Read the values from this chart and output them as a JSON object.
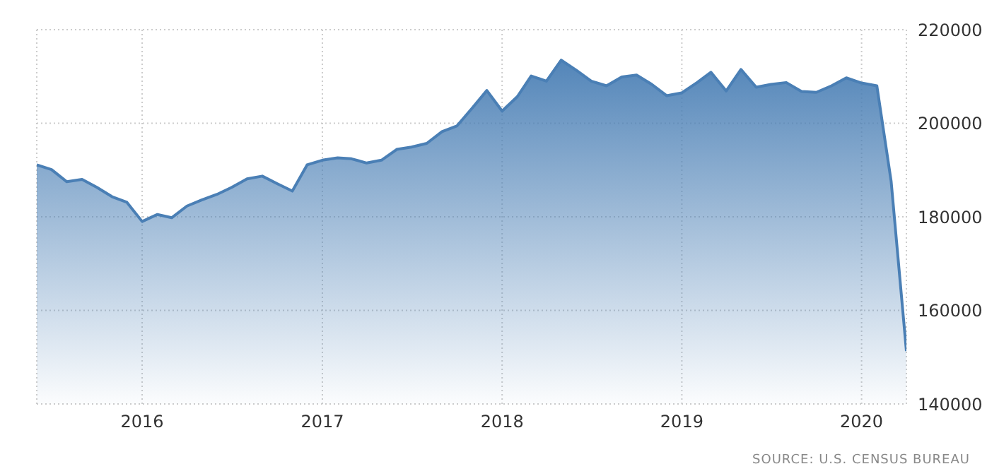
{
  "chart_data": {
    "type": "area",
    "annotations": [
      "SOURCE: U.S. CENSUS BUREAU"
    ],
    "x": [
      "2015-06",
      "2015-07",
      "2015-08",
      "2015-09",
      "2015-10",
      "2015-11",
      "2015-12",
      "2016-01",
      "2016-02",
      "2016-03",
      "2016-04",
      "2016-05",
      "2016-06",
      "2016-07",
      "2016-08",
      "2016-09",
      "2016-10",
      "2016-11",
      "2016-12",
      "2017-01",
      "2017-02",
      "2017-03",
      "2017-04",
      "2017-05",
      "2017-06",
      "2017-07",
      "2017-08",
      "2017-09",
      "2017-10",
      "2017-11",
      "2017-12",
      "2018-01",
      "2018-02",
      "2018-03",
      "2018-04",
      "2018-05",
      "2018-06",
      "2018-07",
      "2018-08",
      "2018-09",
      "2018-10",
      "2018-11",
      "2018-12",
      "2019-01",
      "2019-02",
      "2019-03",
      "2019-04",
      "2019-05",
      "2019-06",
      "2019-07",
      "2019-08",
      "2019-09",
      "2019-10",
      "2019-11",
      "2019-12",
      "2020-01",
      "2020-02",
      "2020-03",
      "2020-04"
    ],
    "series": [
      {
        "color": "#4a7fb5",
        "values": [
          191100,
          190100,
          187500,
          188000,
          186300,
          184300,
          183100,
          179000,
          180500,
          179800,
          182300,
          183600,
          184800,
          186300,
          188100,
          188700,
          187100,
          185500,
          191100,
          192100,
          192600,
          192400,
          191500,
          192100,
          194400,
          194900,
          195700,
          198200,
          199400,
          203200,
          207000,
          202600,
          205700,
          210100,
          209000,
          213500,
          211300,
          209000,
          208000,
          209900,
          210300,
          208300,
          205900,
          206500,
          208700,
          210900,
          206900,
          211500,
          207700,
          208300,
          208700,
          206800,
          206600,
          208000,
          209700,
          208600,
          208000,
          187600,
          151300
        ]
      }
    ],
    "xlim": [
      "2015-06",
      "2020-04"
    ],
    "xticks": [
      "2016",
      "2017",
      "2018",
      "2019",
      "2020"
    ],
    "ylim": [
      140000,
      220000
    ],
    "yticks": [
      140000,
      160000,
      180000,
      200000,
      220000
    ],
    "grid": true,
    "marker": "none"
  }
}
